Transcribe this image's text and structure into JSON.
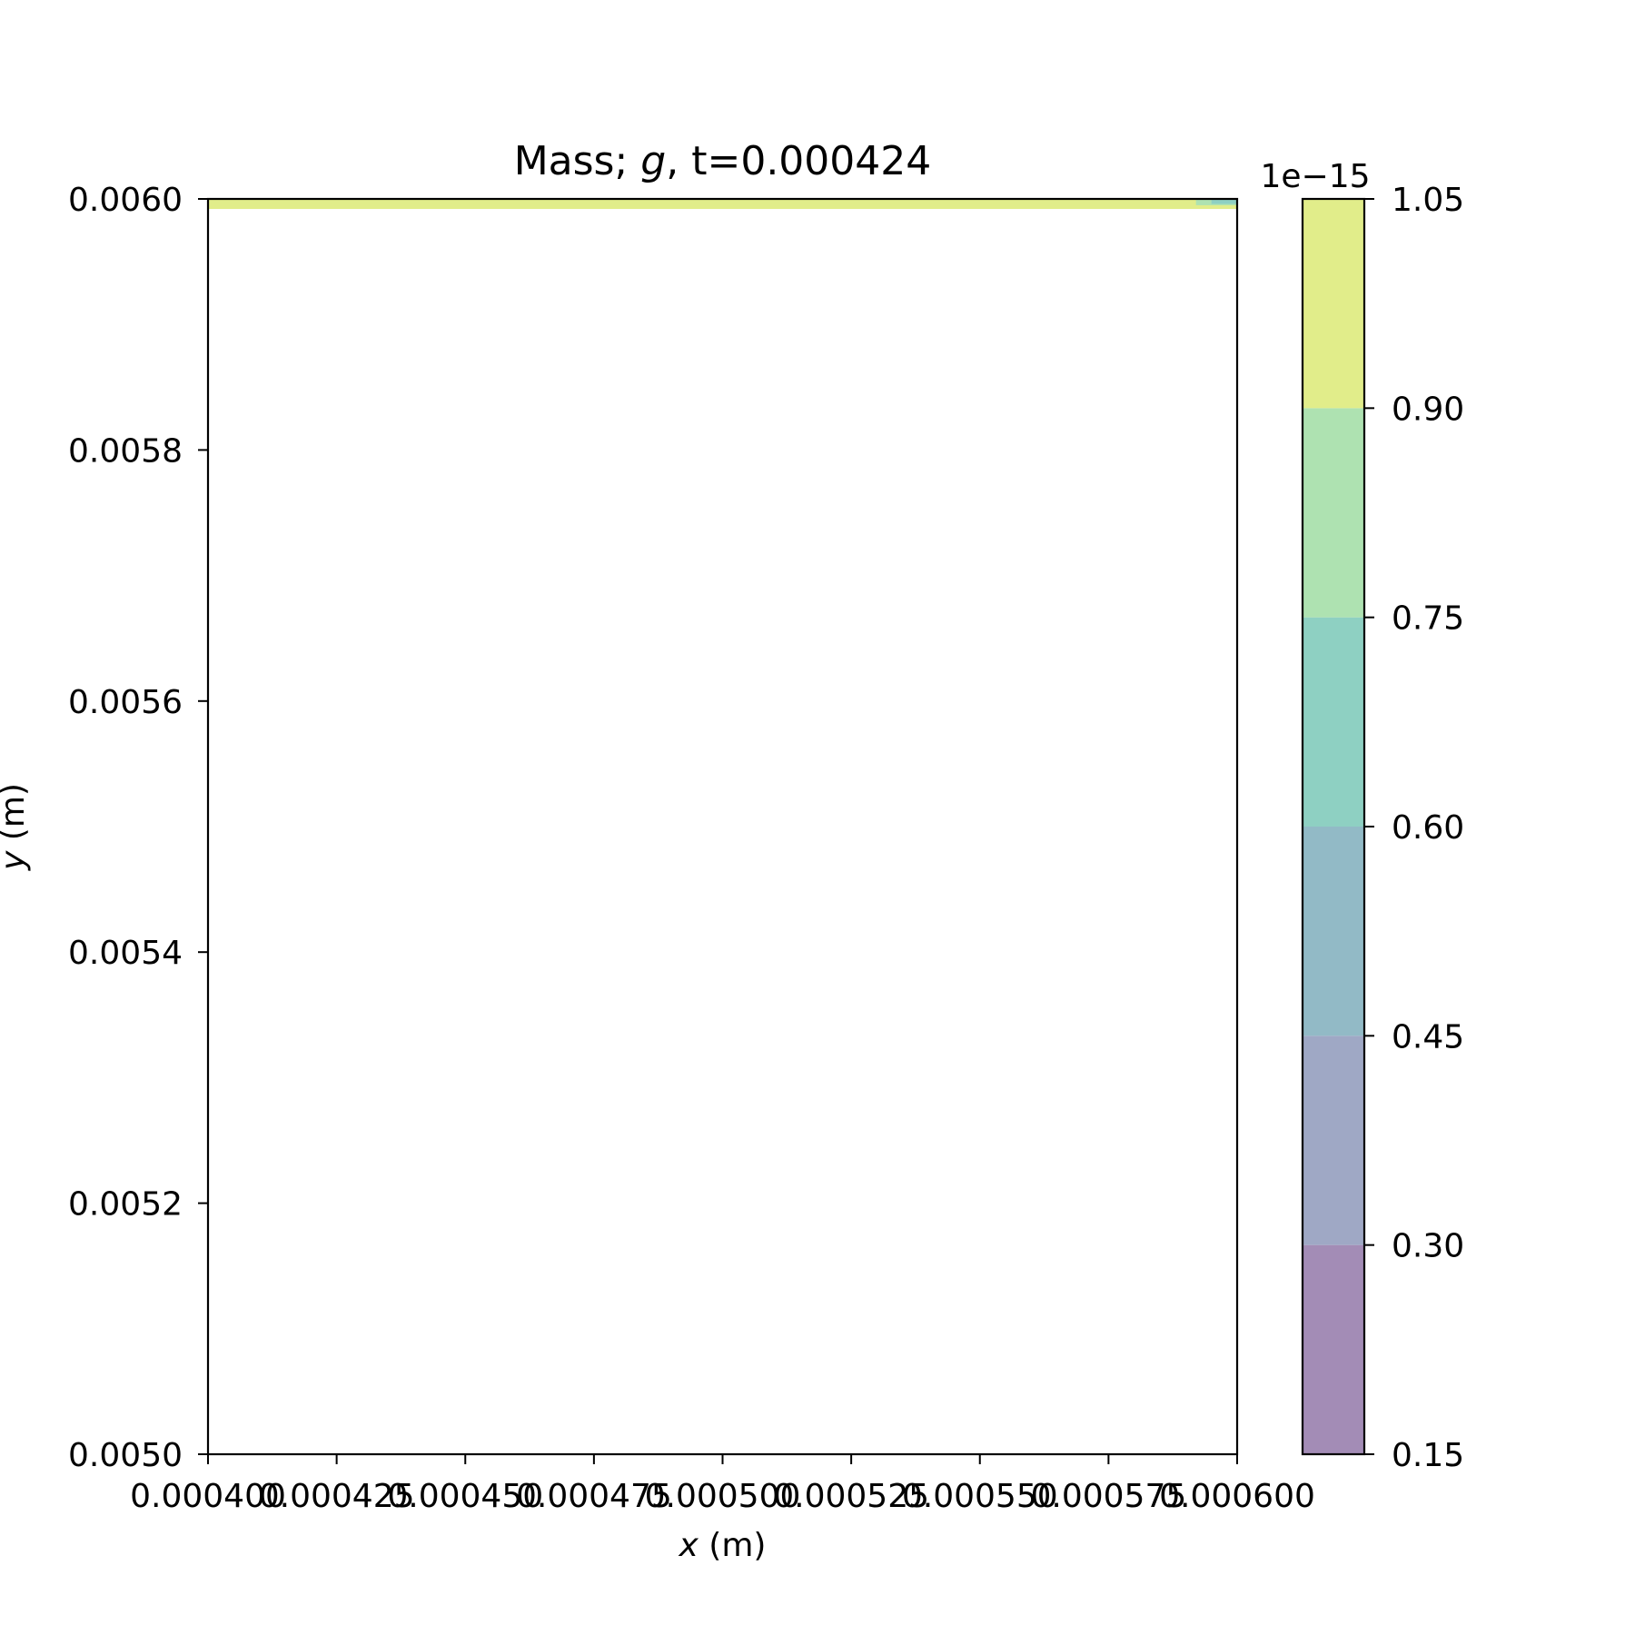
{
  "chart_data": {
    "type": "contour",
    "title": "Mass; g, t=0.000424",
    "title_parts": {
      "prefix": "Mass; ",
      "symbol": "g",
      "suffix": ", t=0.000424"
    },
    "xlabel": {
      "symbol": "x",
      "unit": " (m)"
    },
    "ylabel": {
      "symbol": "y",
      "unit": " (m)"
    },
    "xlim": [
      0.0004,
      0.0006
    ],
    "ylim": [
      0.005,
      0.006
    ],
    "xticks": [
      {
        "value": 0.0004,
        "label": "0.000400"
      },
      {
        "value": 0.000425,
        "label": "0.000425"
      },
      {
        "value": 0.00045,
        "label": "0.000450"
      },
      {
        "value": 0.000475,
        "label": "0.000475"
      },
      {
        "value": 0.0005,
        "label": "0.000500"
      },
      {
        "value": 0.000525,
        "label": "0.000525"
      },
      {
        "value": 0.00055,
        "label": "0.000550"
      },
      {
        "value": 0.000575,
        "label": "0.000575"
      },
      {
        "value": 0.0006,
        "label": "0.000600"
      }
    ],
    "yticks": [
      {
        "value": 0.005,
        "label": "0.0050"
      },
      {
        "value": 0.0052,
        "label": "0.0052"
      },
      {
        "value": 0.0054,
        "label": "0.0054"
      },
      {
        "value": 0.0056,
        "label": "0.0056"
      },
      {
        "value": 0.0058,
        "label": "0.0058"
      },
      {
        "value": 0.006,
        "label": "0.0060"
      }
    ],
    "filled_regions": [
      {
        "x": [
          0.0004,
          0.0006
        ],
        "y": [
          0.005992,
          0.006
        ],
        "level": 0.98,
        "color": "#e1ed8a"
      },
      {
        "x": [
          0.000592,
          0.0006
        ],
        "y": [
          0.005995,
          0.006
        ],
        "level": 0.85,
        "color": "#aee2b1"
      },
      {
        "x": [
          0.000595,
          0.0006
        ],
        "y": [
          0.005996,
          0.006
        ],
        "level": 0.68,
        "color": "#8ed0c2"
      }
    ],
    "colorbar": {
      "multiplier_label": "1e−15",
      "levels": [
        0.15,
        0.3,
        0.45,
        0.6,
        0.75,
        0.9,
        1.05
      ],
      "tick_labels": [
        "0.15",
        "0.30",
        "0.45",
        "0.60",
        "0.75",
        "0.90",
        "1.05"
      ],
      "colors": [
        "#a38cb6",
        "#9fa8c5",
        "#92bac6",
        "#8ed0c2",
        "#aee2b1",
        "#e1ed8a"
      ]
    },
    "grid": false
  }
}
